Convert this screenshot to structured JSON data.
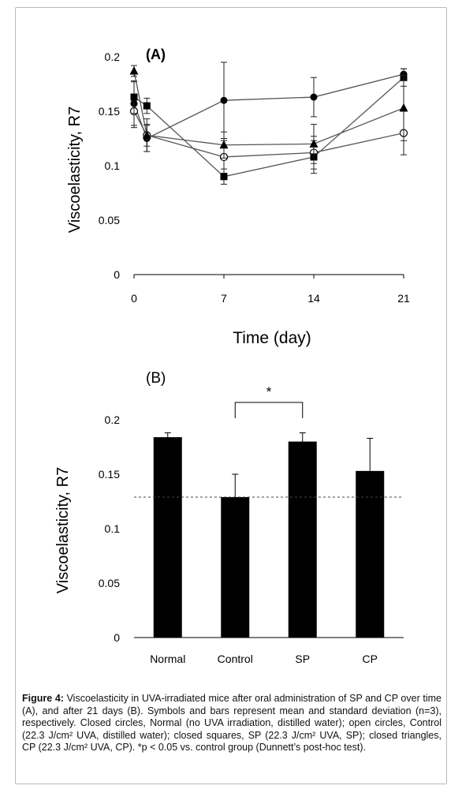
{
  "chart_data": [
    {
      "type": "line",
      "panel_label": "(A)",
      "xlabel": "Time (day)",
      "ylabel": "Viscoelasticity, R7",
      "ylim": [
        0,
        0.2
      ],
      "xlim": [
        0,
        21
      ],
      "x_ticks": [
        "0",
        "7",
        "14",
        "21"
      ],
      "y_ticks": [
        "0",
        "0.05",
        "0.1",
        "0.15",
        "0.2"
      ],
      "x": [
        0,
        1,
        7,
        14,
        21
      ],
      "series": [
        {
          "marker": "filled-circle",
          "values": [
            0.157,
            0.125,
            0.16,
            0.163,
            0.184
          ],
          "errors": [
            0.02,
            0.012,
            0.035,
            0.018,
            0.005
          ]
        },
        {
          "marker": "open-circle",
          "values": [
            0.15,
            0.128,
            0.108,
            0.112,
            0.13
          ],
          "errors": [
            0.015,
            0.01,
            0.015,
            0.015,
            0.02
          ]
        },
        {
          "marker": "filled-square",
          "values": [
            0.163,
            0.155,
            0.09,
            0.108,
            0.181
          ],
          "errors": [
            0.015,
            0.007,
            0.007,
            0.015,
            0.008
          ]
        },
        {
          "marker": "filled-triangle",
          "values": [
            0.187,
            0.128,
            0.119,
            0.12,
            0.153
          ],
          "errors": [
            0.005,
            0.015,
            0.012,
            0.018,
            0.03
          ]
        }
      ]
    },
    {
      "type": "bar",
      "panel_label": "(B)",
      "ylabel": "Viscoelasticity, R7",
      "ylim": [
        0,
        0.2
      ],
      "y_ticks": [
        "0",
        "0.05",
        "0.1",
        "0.15",
        "0.2"
      ],
      "categories": [
        "Normal",
        "Control",
        "SP",
        "CP"
      ],
      "values": [
        0.184,
        0.129,
        0.18,
        0.153
      ],
      "errors": [
        0.004,
        0.021,
        0.008,
        0.03
      ],
      "reference_line": 0.129,
      "significance": {
        "from": "Control",
        "to": "SP",
        "label": "*"
      }
    }
  ],
  "caption": {
    "label": "Figure 4:",
    "text": " Viscoelasticity in UVA-irradiated mice after oral administration of SP and CP over time (A), and after 21 days (B). Symbols and bars represent mean and standard deviation (n=3), respectively. Closed circles, Normal (no UVA irradiation, distilled water); open circles, Control (22.3 J/cm² UVA, distilled water); closed squares, SP (22.3 J/cm² UVA, SP); closed triangles, CP (22.3 J/cm² UVA, CP). *p < 0.05 vs. control group (Dunnett’s post-hoc test)."
  },
  "colors": {
    "line": "#555555",
    "bar": "#000000",
    "axis": "#000000"
  }
}
